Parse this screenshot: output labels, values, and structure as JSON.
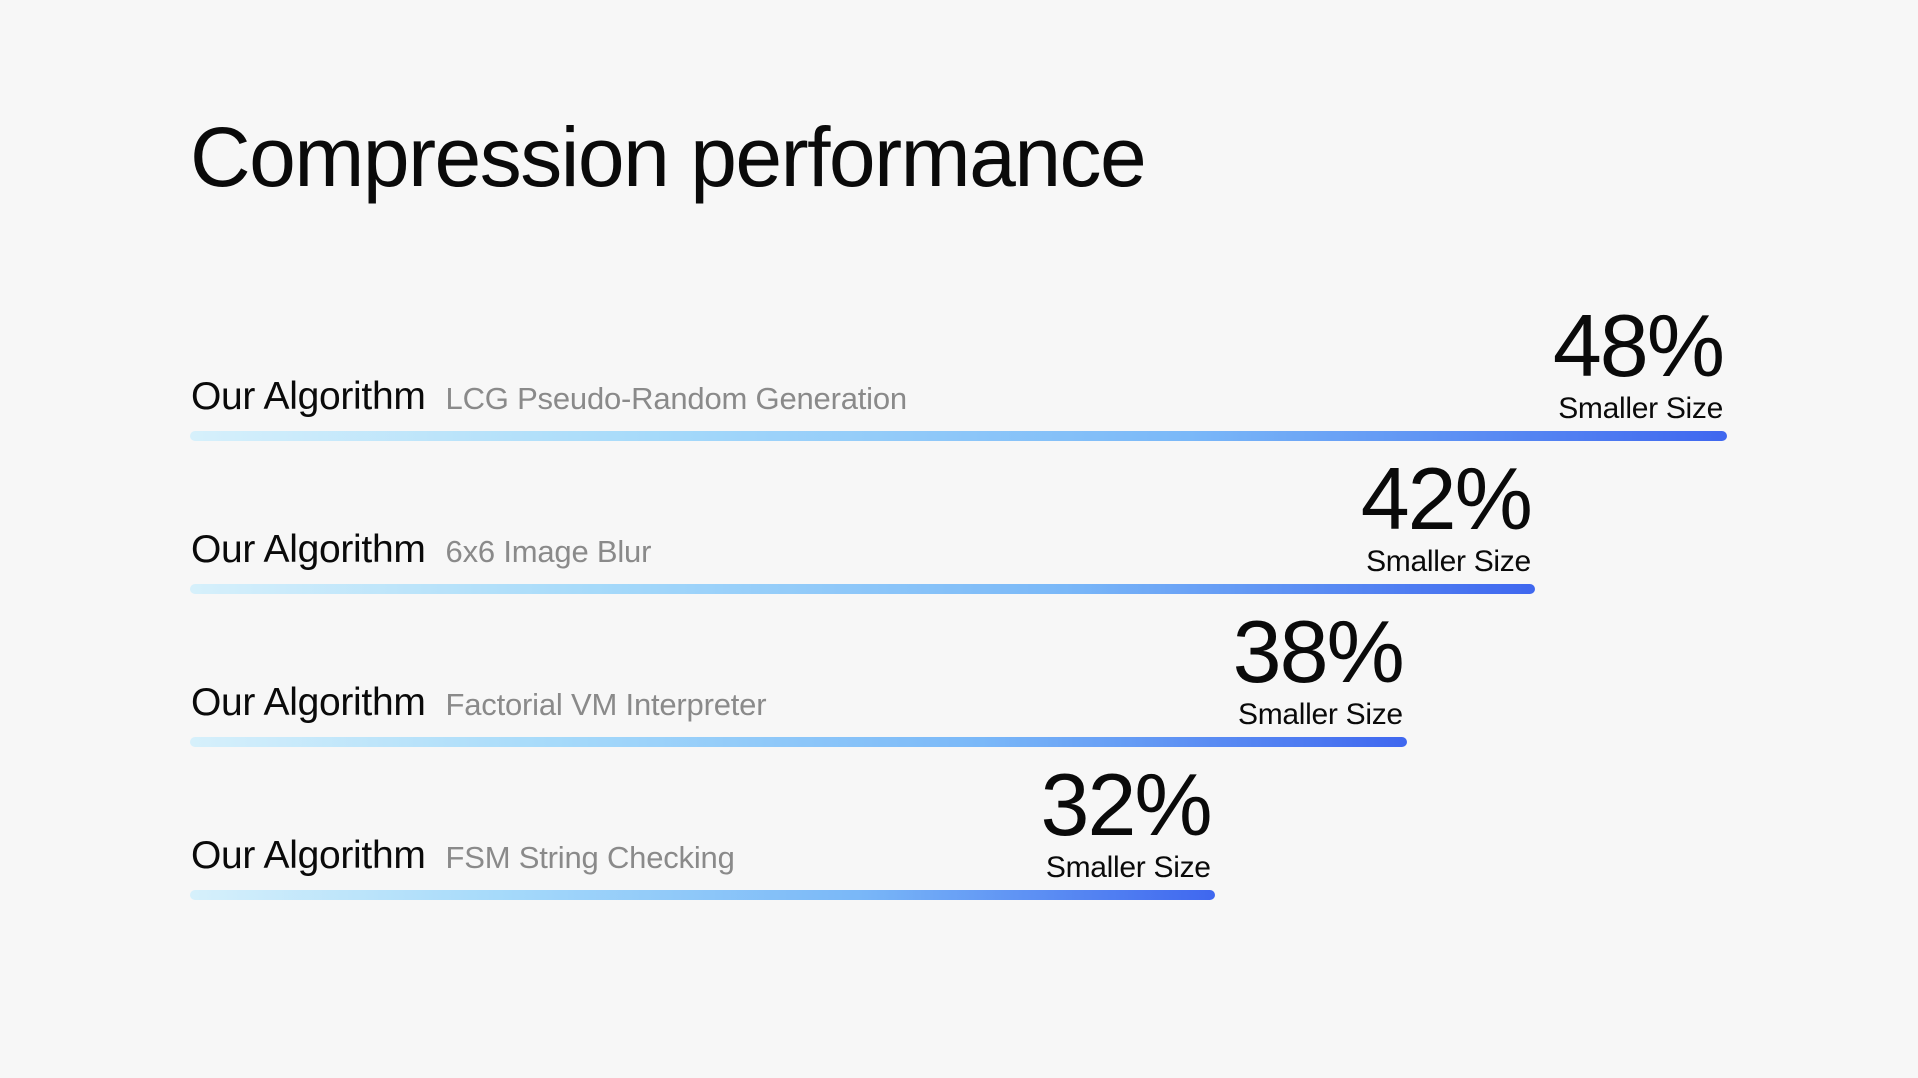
{
  "title": "Compression performance",
  "chart_data": {
    "type": "bar",
    "orientation": "horizontal",
    "title": "Compression performance",
    "categories": [
      "LCG Pseudo-Random Generation",
      "6x6 Image Blur",
      "Factorial VM Interpreter",
      "FSM String Checking"
    ],
    "series": [
      {
        "values": [
          48,
          42,
          38,
          32
        ]
      }
    ],
    "rows": [
      {
        "label": "Our Algorithm",
        "task": "LCG Pseudo-Random Generation",
        "value": 48,
        "value_label": "48%",
        "unit_label": "Smaller Size"
      },
      {
        "label": "Our Algorithm",
        "task": "6x6 Image Blur",
        "value": 42,
        "value_label": "42%",
        "unit_label": "Smaller Size"
      },
      {
        "label": "Our Algorithm",
        "task": "Factorial VM Interpreter",
        "value": 38,
        "value_label": "38%",
        "unit_label": "Smaller Size"
      },
      {
        "label": "Our Algorithm",
        "task": "FSM String Checking",
        "value": 32,
        "value_label": "32%",
        "unit_label": "Smaller Size"
      }
    ],
    "xlabel": "",
    "ylabel": "",
    "grid": false,
    "legend": "none",
    "colors": {
      "bar_start": "#d6f0fb",
      "bar_mid": "#7ab8f8",
      "bar_end": "#3f67ef",
      "task_text": "#8a8a8a",
      "text": "#0a0a0a",
      "background": "#f7f7f7"
    }
  }
}
